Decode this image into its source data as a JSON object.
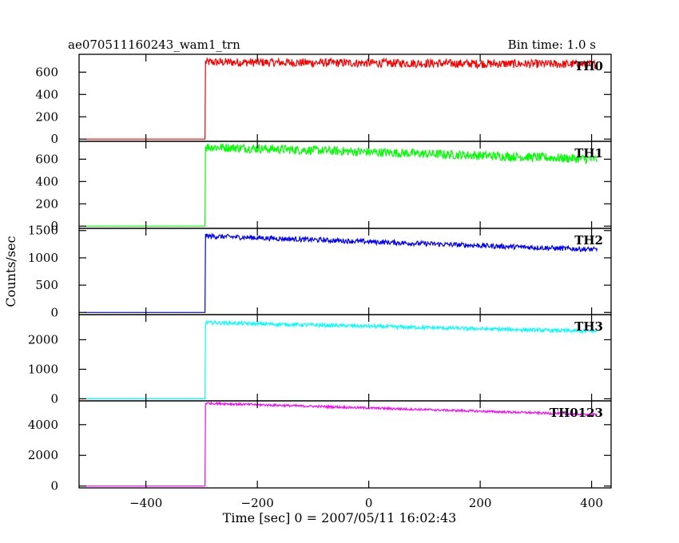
{
  "chart_data": {
    "type": "line",
    "title_left": "ae070511160243_wam1_trn",
    "title_right": "Bin time: 1.0 s",
    "xlabel": "Time [sec] 0 = 2007/05/11 16:02:43",
    "ylabel": "Counts/sec",
    "xlim": [
      -520,
      435
    ],
    "x_ticks": [
      -400,
      -200,
      0,
      200,
      400
    ],
    "x_tick_labels": [
      "−400",
      "−200",
      "0",
      "200",
      "400"
    ],
    "x_range": [
      -510,
      410
    ],
    "onset_time": -293,
    "grid": false,
    "panels": [
      {
        "name": "TH0",
        "color": "#ff0000",
        "ylim": [
          -20,
          760
        ],
        "y_ticks": [
          0,
          200,
          400,
          600
        ],
        "y_tick_labels": [
          "0",
          "200",
          "400",
          "600"
        ],
        "pre_level": 0,
        "post_start": 690,
        "post_end": 670,
        "noise": 38
      },
      {
        "name": "TH1",
        "color": "#00ff00",
        "ylim": [
          -20,
          760
        ],
        "y_ticks": [
          0,
          200,
          400,
          600
        ],
        "y_tick_labels": [
          "0",
          "200",
          "400",
          "600"
        ],
        "pre_level": 0,
        "post_start": 710,
        "post_end": 600,
        "noise": 40
      },
      {
        "name": "TH2",
        "color": "#0000ff",
        "ylim": [
          -40,
          1540
        ],
        "y_ticks": [
          0,
          500,
          1000,
          1500
        ],
        "y_tick_labels": [
          "0",
          "500",
          "1000",
          "1500"
        ],
        "pre_level": 0,
        "post_start": 1400,
        "post_end": 1150,
        "noise": 45
      },
      {
        "name": "TH3",
        "color": "#00ffff",
        "ylim": [
          -70,
          2850
        ],
        "y_ticks": [
          0,
          1000,
          2000
        ],
        "y_tick_labels": [
          "0",
          "1000",
          "2000"
        ],
        "pre_level": 0,
        "post_start": 2580,
        "post_end": 2280,
        "noise": 60
      },
      {
        "name": "TH0123",
        "color": "#ff00ff",
        "ylim": [
          -120,
          5550
        ],
        "y_ticks": [
          0,
          2000,
          4000
        ],
        "y_tick_labels": [
          "0",
          "2000",
          "4000"
        ],
        "pre_level": 0,
        "post_start": 5400,
        "post_end": 4650,
        "noise": 70
      }
    ]
  }
}
